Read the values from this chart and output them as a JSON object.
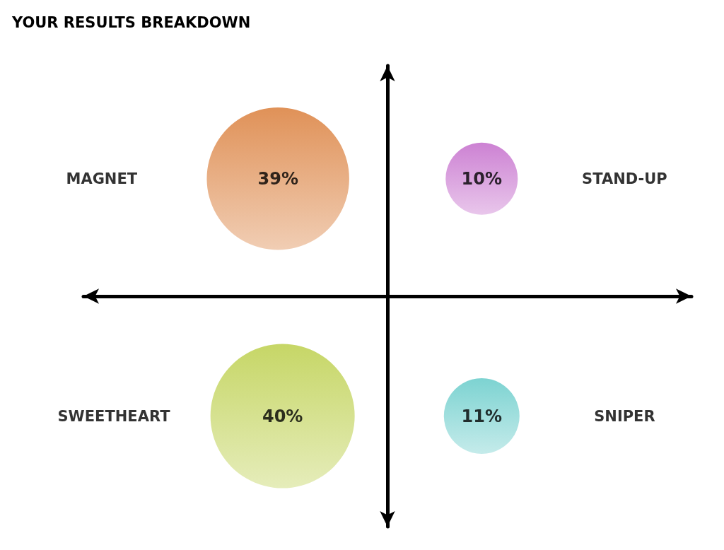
{
  "chart_data": {
    "type": "other",
    "title": "YOUR RESULTS BREAKDOWN",
    "categories": [
      "MAGNET",
      "STAND-UP",
      "SWEETHEART",
      "SNIPER"
    ],
    "values": [
      39,
      10,
      40,
      11
    ],
    "colors": [
      "#d8762e",
      "#c062c8",
      "#b8cc40",
      "#5cc8c6"
    ],
    "value_labels": [
      "39%",
      "10%",
      "40%",
      "11%"
    ]
  }
}
